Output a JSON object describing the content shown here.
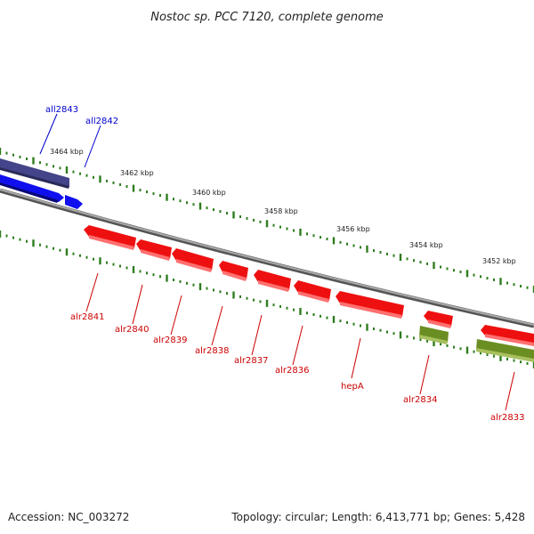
{
  "title": "Nostoc sp. PCC 7120, complete genome",
  "footer": {
    "accession": "Accession: NC_003272",
    "topology": "Topology: circular; Length: 6,413,771 bp; Genes: 5,428"
  },
  "colors": {
    "background": "#ffffff",
    "backbone": "#888888",
    "tick": "#2e7d1e",
    "forward_label": "#0000cc",
    "reverse_label": "#cc0000"
  },
  "scale_labels": [
    "3464 kbp",
    "3462 kbp",
    "3460 kbp",
    "3458 kbp",
    "3456 kbp",
    "3454 kbp",
    "3452 kbp"
  ],
  "genes": [
    {
      "id": "all2843",
      "label": "all2843",
      "strand": "forward",
      "color": "#44448a"
    },
    {
      "id": "all2842",
      "label": "all2842",
      "strand": "forward",
      "color": "#1010ee"
    },
    {
      "id": "alr2841",
      "label": "alr2841",
      "strand": "reverse",
      "color": "#ee1010"
    },
    {
      "id": "alr2840",
      "label": "alr2840",
      "strand": "reverse",
      "color": "#ee1010"
    },
    {
      "id": "alr2839",
      "label": "alr2839",
      "strand": "reverse",
      "color": "#ee1010"
    },
    {
      "id": "alr2838",
      "label": "alr2838",
      "strand": "reverse",
      "color": "#ee1010"
    },
    {
      "id": "alr2837",
      "label": "alr2837",
      "strand": "reverse",
      "color": "#ee1010"
    },
    {
      "id": "alr2836",
      "label": "alr2836",
      "strand": "reverse",
      "color": "#ee1010"
    },
    {
      "id": "hepA",
      "label": "hepA",
      "strand": "reverse",
      "color": "#ee1010"
    },
    {
      "id": "alr2834",
      "label": "alr2834",
      "strand": "reverse",
      "color": "#6b8e23"
    },
    {
      "id": "alr2833",
      "label": "alr2833",
      "strand": "reverse",
      "color": "#6b8e23"
    },
    {
      "id": "alr2833-red",
      "label": "",
      "strand": "reverse",
      "color": "#ee1010"
    }
  ]
}
